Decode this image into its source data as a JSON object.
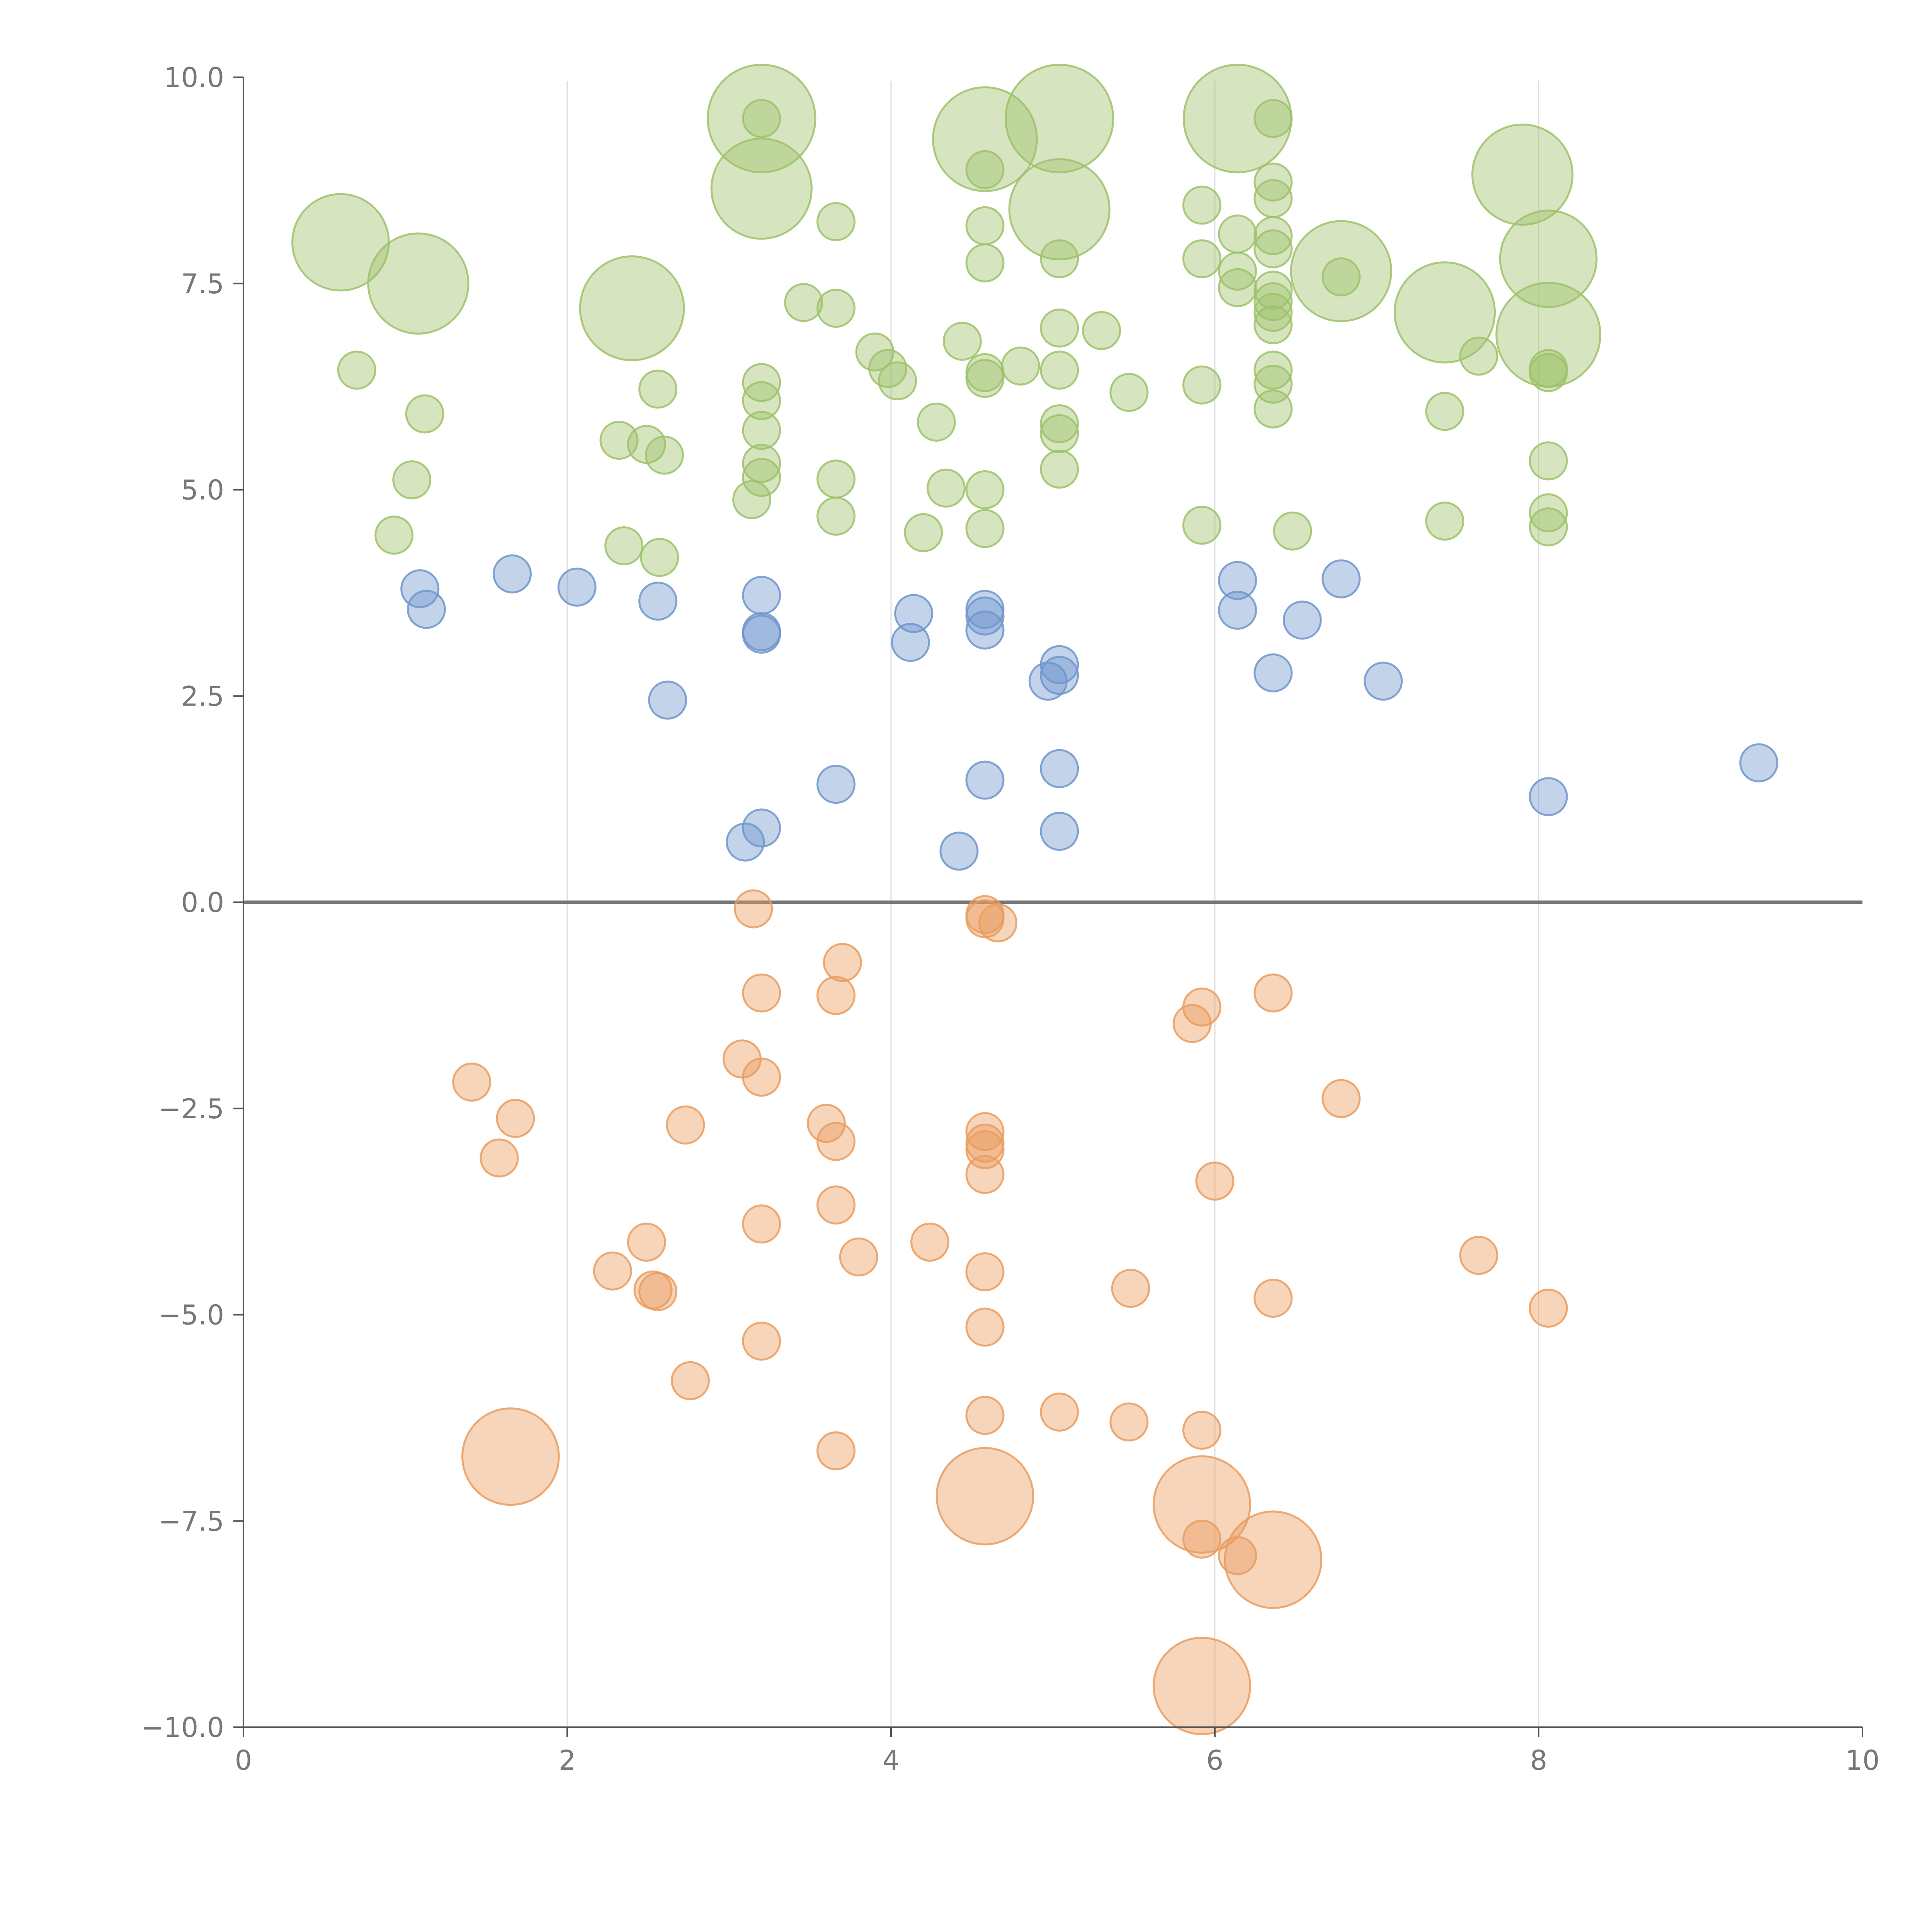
{
  "chart_data": {
    "type": "scatter",
    "title": "",
    "xlabel": "",
    "ylabel": "",
    "xlim": [
      0,
      10
    ],
    "ylim": [
      -10,
      10
    ],
    "x_ticks": [
      "0",
      "2",
      "4",
      "6",
      "8",
      "10"
    ],
    "y_ticks": [
      "10.0",
      "7.5",
      "5.0",
      "2.5",
      "0.0",
      "−2.5",
      "−5.0",
      "−7.5",
      "−10.0"
    ],
    "x_tick_values": [
      0,
      2,
      4,
      6,
      8,
      10
    ],
    "y_tick_values": [
      10,
      7.5,
      5,
      2.5,
      0,
      -2.5,
      -5,
      -7.5,
      -10
    ],
    "vertical_gridlines_at": [
      2,
      4,
      6,
      8
    ],
    "zero_line": true,
    "colors": {
      "top": "#9dc26a",
      "middle": "#6f95cc",
      "bottom": "#ea9c5e",
      "axis": "#555555",
      "grid": "#dddddd"
    },
    "series": [
      {
        "color_key": "top",
        "points": [
          [
            0.6,
            8.0,
            2.6
          ],
          [
            1.08,
            7.5,
            2.7
          ],
          [
            0.7,
            6.45,
            1
          ],
          [
            1.12,
            5.92,
            1
          ],
          [
            1.04,
            5.12,
            1
          ],
          [
            0.93,
            4.45,
            1
          ],
          [
            2.4,
            7.2,
            2.8
          ],
          [
            2.32,
            5.6,
            1
          ],
          [
            2.49,
            5.55,
            1
          ],
          [
            2.6,
            5.42,
            1
          ],
          [
            2.56,
            6.22,
            1
          ],
          [
            2.35,
            4.32,
            1
          ],
          [
            2.57,
            4.18,
            1
          ],
          [
            3.2,
            9.5,
            2.9
          ],
          [
            3.2,
            8.65,
            2.7
          ],
          [
            3.2,
            9.5,
            1
          ],
          [
            3.66,
            8.25,
            1
          ],
          [
            3.46,
            7.27,
            1
          ],
          [
            3.66,
            7.2,
            1
          ],
          [
            3.2,
            6.3,
            1
          ],
          [
            3.2,
            6.08,
            1
          ],
          [
            3.2,
            5.72,
            1
          ],
          [
            3.2,
            5.32,
            1
          ],
          [
            3.2,
            5.15,
            1
          ],
          [
            3.14,
            4.88,
            1
          ],
          [
            3.66,
            5.13,
            1
          ],
          [
            3.66,
            4.68,
            1
          ],
          [
            3.9,
            6.67,
            1
          ],
          [
            3.98,
            6.47,
            1
          ],
          [
            4.04,
            6.32,
            1
          ],
          [
            4.44,
            6.8,
            1
          ],
          [
            4.28,
            5.82,
            1
          ],
          [
            4.34,
            5.02,
            1
          ],
          [
            4.2,
            4.48,
            1
          ],
          [
            4.58,
            9.25,
            2.8
          ],
          [
            4.58,
            8.88,
            1
          ],
          [
            4.58,
            8.2,
            1
          ],
          [
            4.58,
            7.75,
            1
          ],
          [
            4.58,
            6.42,
            1
          ],
          [
            4.58,
            6.35,
            1
          ],
          [
            4.58,
            5.0,
            1
          ],
          [
            4.58,
            4.53,
            1
          ],
          [
            4.8,
            6.5,
            1
          ],
          [
            5.04,
            9.5,
            2.9
          ],
          [
            5.04,
            8.4,
            2.7
          ],
          [
            5.04,
            7.8,
            1
          ],
          [
            5.04,
            6.96,
            1
          ],
          [
            5.04,
            6.45,
            1
          ],
          [
            5.04,
            5.8,
            1
          ],
          [
            5.04,
            5.68,
            1
          ],
          [
            5.04,
            5.25,
            1
          ],
          [
            5.3,
            6.93,
            1
          ],
          [
            5.47,
            6.18,
            1
          ],
          [
            5.92,
            8.45,
            1
          ],
          [
            5.92,
            7.8,
            1
          ],
          [
            5.92,
            6.27,
            1
          ],
          [
            5.92,
            4.57,
            1
          ],
          [
            6.14,
            9.5,
            2.9
          ],
          [
            6.14,
            8.1,
            1
          ],
          [
            6.14,
            7.65,
            1
          ],
          [
            6.14,
            7.45,
            1
          ],
          [
            6.36,
            9.5,
            1
          ],
          [
            6.36,
            8.73,
            1
          ],
          [
            6.36,
            8.53,
            1
          ],
          [
            6.36,
            8.08,
            1
          ],
          [
            6.36,
            7.92,
            1
          ],
          [
            6.36,
            7.42,
            1
          ],
          [
            6.36,
            7.28,
            1
          ],
          [
            6.36,
            7.15,
            1
          ],
          [
            6.36,
            7.0,
            1
          ],
          [
            6.36,
            6.45,
            1
          ],
          [
            6.36,
            6.28,
            1
          ],
          [
            6.36,
            5.98,
            1
          ],
          [
            6.48,
            4.5,
            1
          ],
          [
            6.78,
            7.65,
            2.7
          ],
          [
            6.78,
            7.58,
            1
          ],
          [
            7.42,
            7.15,
            2.7
          ],
          [
            7.63,
            6.62,
            1
          ],
          [
            7.42,
            5.95,
            1
          ],
          [
            7.42,
            4.62,
            1
          ],
          [
            7.9,
            8.82,
            2.7
          ],
          [
            8.06,
            7.8,
            2.6
          ],
          [
            8.06,
            6.88,
            2.8
          ],
          [
            8.06,
            6.47,
            1
          ],
          [
            8.06,
            6.42,
            1
          ],
          [
            8.06,
            5.35,
            1
          ],
          [
            8.06,
            4.72,
            1
          ],
          [
            8.06,
            4.55,
            1
          ]
        ]
      },
      {
        "color_key": "middle",
        "points": [
          [
            1.09,
            3.8,
            1
          ],
          [
            1.13,
            3.55,
            1
          ],
          [
            1.66,
            3.98,
            1
          ],
          [
            2.06,
            3.82,
            1
          ],
          [
            2.56,
            3.65,
            1
          ],
          [
            2.62,
            2.45,
            1
          ],
          [
            3.2,
            3.72,
            1
          ],
          [
            3.2,
            3.28,
            1
          ],
          [
            3.2,
            3.25,
            1
          ],
          [
            3.66,
            1.43,
            1
          ],
          [
            3.2,
            0.9,
            1
          ],
          [
            3.1,
            0.73,
            1
          ],
          [
            4.14,
            3.5,
            1
          ],
          [
            4.12,
            3.15,
            1
          ],
          [
            4.58,
            3.55,
            1
          ],
          [
            4.58,
            3.47,
            1
          ],
          [
            4.58,
            3.3,
            1
          ],
          [
            4.58,
            1.48,
            1
          ],
          [
            4.42,
            0.62,
            1
          ],
          [
            4.97,
            2.68,
            1
          ],
          [
            5.04,
            2.88,
            1
          ],
          [
            5.04,
            2.75,
            1
          ],
          [
            5.04,
            1.62,
            1
          ],
          [
            5.04,
            0.86,
            1
          ],
          [
            6.14,
            3.9,
            1
          ],
          [
            6.14,
            3.54,
            1
          ],
          [
            6.54,
            3.42,
            1
          ],
          [
            6.36,
            2.78,
            1
          ],
          [
            6.78,
            3.92,
            1
          ],
          [
            7.04,
            2.68,
            1
          ],
          [
            8.06,
            1.28,
            1
          ],
          [
            9.36,
            1.69,
            1
          ]
        ]
      },
      {
        "color_key": "bottom",
        "points": [
          [
            3.15,
            -0.08,
            1
          ],
          [
            3.2,
            -1.1,
            1
          ],
          [
            3.7,
            -0.73,
            1
          ],
          [
            3.66,
            -1.13,
            1
          ],
          [
            3.08,
            -1.9,
            1
          ],
          [
            3.2,
            -2.12,
            1
          ],
          [
            4.58,
            -0.15,
            1
          ],
          [
            4.58,
            -0.2,
            1
          ],
          [
            4.66,
            -0.25,
            1
          ],
          [
            5.92,
            -1.27,
            1
          ],
          [
            5.86,
            -1.47,
            1
          ],
          [
            6.36,
            -1.1,
            1
          ],
          [
            1.41,
            -2.18,
            1
          ],
          [
            1.68,
            -2.62,
            1
          ],
          [
            1.58,
            -3.1,
            1
          ],
          [
            2.73,
            -2.7,
            1
          ],
          [
            3.6,
            -2.68,
            1
          ],
          [
            3.66,
            -2.9,
            1
          ],
          [
            4.58,
            -2.78,
            1
          ],
          [
            4.58,
            -2.92,
            1
          ],
          [
            4.58,
            -3.0,
            1
          ],
          [
            4.58,
            -3.3,
            1
          ],
          [
            6.0,
            -3.38,
            1
          ],
          [
            6.78,
            -2.38,
            1
          ],
          [
            3.66,
            -3.67,
            1
          ],
          [
            3.2,
            -3.9,
            1
          ],
          [
            2.49,
            -4.12,
            1
          ],
          [
            2.28,
            -4.47,
            1
          ],
          [
            2.53,
            -4.7,
            1
          ],
          [
            2.56,
            -4.72,
            1
          ],
          [
            3.8,
            -4.3,
            1
          ],
          [
            4.24,
            -4.12,
            1
          ],
          [
            4.58,
            -4.48,
            1
          ],
          [
            5.48,
            -4.68,
            1
          ],
          [
            6.36,
            -4.8,
            1
          ],
          [
            7.63,
            -4.28,
            1
          ],
          [
            8.06,
            -4.92,
            1
          ],
          [
            3.2,
            -5.32,
            1
          ],
          [
            2.76,
            -5.8,
            1
          ],
          [
            4.58,
            -5.15,
            1
          ],
          [
            4.58,
            -6.22,
            1
          ],
          [
            5.04,
            -6.18,
            1
          ],
          [
            5.47,
            -6.3,
            1
          ],
          [
            5.92,
            -6.4,
            1
          ],
          [
            3.66,
            -6.65,
            1
          ],
          [
            1.65,
            -6.72,
            2.6
          ],
          [
            4.58,
            -7.2,
            2.6
          ],
          [
            5.92,
            -7.3,
            2.6
          ],
          [
            5.92,
            -7.72,
            1
          ],
          [
            6.14,
            -7.92,
            1
          ],
          [
            6.36,
            -7.97,
            2.6
          ],
          [
            5.92,
            -9.5,
            2.6
          ]
        ]
      }
    ]
  }
}
